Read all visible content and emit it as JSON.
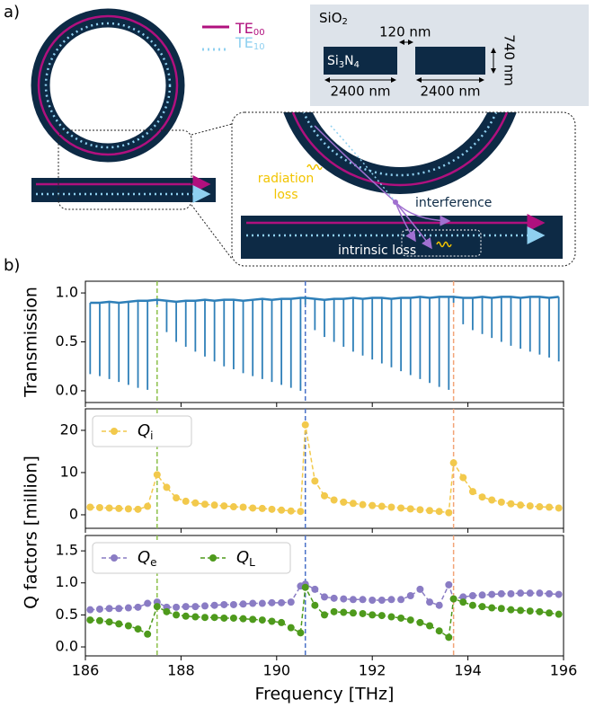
{
  "diagram": {
    "panel_label": "a)",
    "te00": {
      "text": "TE",
      "sub": "00"
    },
    "te10": {
      "text": "TE",
      "sub": "10"
    },
    "cladding": {
      "text": "SiO",
      "sub": "2"
    },
    "core": [
      "Si",
      "3",
      "N",
      "4"
    ],
    "gap": "120 nm",
    "height": "740 nm",
    "widths": [
      "2400 nm",
      "2400 nm"
    ],
    "radiation_loss": [
      "radiation",
      "loss"
    ],
    "interference": "interference",
    "intrinsic_loss": "intrinsic loss"
  },
  "panel_b_label": "b)",
  "chart_data": [
    {
      "type": "vlines",
      "ylabel": "Transmission",
      "color": "#2e7fb8",
      "x": [
        186.1,
        186.3,
        186.5,
        186.7,
        186.9,
        187.1,
        187.3,
        187.5,
        187.7,
        187.9,
        188.1,
        188.3,
        188.5,
        188.7,
        188.9,
        189.1,
        189.3,
        189.5,
        189.7,
        189.9,
        190.1,
        190.3,
        190.5,
        190.6,
        190.8,
        191.0,
        191.2,
        191.4,
        191.6,
        191.8,
        192.0,
        192.2,
        192.4,
        192.6,
        192.8,
        193.0,
        193.2,
        193.4,
        193.6,
        193.7,
        193.9,
        194.1,
        194.3,
        194.5,
        194.7,
        194.9,
        195.1,
        195.3,
        195.5,
        195.7,
        195.9
      ],
      "values": [
        0.17,
        0.15,
        0.12,
        0.09,
        0.06,
        0.03,
        0.01,
        0.88,
        0.6,
        0.5,
        0.45,
        0.4,
        0.35,
        0.3,
        0.25,
        0.22,
        0.18,
        0.15,
        0.12,
        0.09,
        0.06,
        0.03,
        0.0,
        0.88,
        0.62,
        0.55,
        0.5,
        0.45,
        0.4,
        0.36,
        0.32,
        0.28,
        0.24,
        0.2,
        0.16,
        0.12,
        0.08,
        0.04,
        0.01,
        0.9,
        0.68,
        0.62,
        0.58,
        0.54,
        0.5,
        0.46,
        0.43,
        0.4,
        0.37,
        0.34,
        0.3
      ],
      "tops": [
        0.9,
        0.9,
        0.91,
        0.9,
        0.91,
        0.92,
        0.92,
        0.93,
        0.92,
        0.91,
        0.92,
        0.92,
        0.93,
        0.92,
        0.93,
        0.93,
        0.92,
        0.93,
        0.94,
        0.93,
        0.94,
        0.94,
        0.95,
        0.95,
        0.94,
        0.93,
        0.94,
        0.94,
        0.95,
        0.94,
        0.95,
        0.95,
        0.94,
        0.95,
        0.95,
        0.96,
        0.95,
        0.96,
        0.96,
        0.96,
        0.95,
        0.95,
        0.96,
        0.95,
        0.96,
        0.96,
        0.95,
        0.96,
        0.96,
        0.95,
        0.96
      ],
      "xlim": [
        186,
        196
      ],
      "xticks": [
        186,
        188,
        190,
        192,
        194,
        196
      ],
      "ylim": [
        -0.12,
        1.12
      ],
      "yticks": [
        {
          "value": 0,
          "label": "0.0"
        },
        {
          "value": 0.5,
          "label": "0.5"
        },
        {
          "value": 1,
          "label": "1.0"
        }
      ],
      "guides": [
        {
          "x": 187.5,
          "color": "#8cc04a"
        },
        {
          "x": 190.6,
          "color": "#4a72c8"
        },
        {
          "x": 193.7,
          "color": "#f2a478"
        }
      ]
    },
    {
      "type": "line",
      "legend": "upper left",
      "legend_columns": 1,
      "x": [
        186.1,
        186.3,
        186.5,
        186.7,
        186.9,
        187.1,
        187.3,
        187.5,
        187.7,
        187.9,
        188.1,
        188.3,
        188.5,
        188.7,
        188.9,
        189.1,
        189.3,
        189.5,
        189.7,
        189.9,
        190.1,
        190.3,
        190.5,
        190.6,
        190.8,
        191.0,
        191.2,
        191.4,
        191.6,
        191.8,
        192.0,
        192.2,
        192.4,
        192.6,
        192.8,
        193.0,
        193.2,
        193.4,
        193.6,
        193.7,
        193.9,
        194.1,
        194.3,
        194.5,
        194.7,
        194.9,
        195.1,
        195.3,
        195.5,
        195.7,
        195.9
      ],
      "series": [
        {
          "name": "Q",
          "subscript": "i",
          "color": "#f2c94c",
          "values": [
            1.8,
            1.7,
            1.6,
            1.5,
            1.4,
            1.3,
            2.0,
            9.5,
            6.5,
            4.0,
            3.2,
            2.8,
            2.5,
            2.3,
            2.1,
            1.9,
            1.8,
            1.6,
            1.5,
            1.3,
            1.1,
            0.9,
            0.8,
            21.3,
            8.0,
            4.5,
            3.5,
            3.0,
            2.7,
            2.4,
            2.2,
            2.0,
            1.8,
            1.6,
            1.4,
            1.2,
            1.0,
            0.8,
            0.5,
            12.3,
            8.8,
            5.5,
            4.2,
            3.5,
            3.0,
            2.6,
            2.3,
            2.1,
            1.9,
            1.8,
            1.6
          ]
        }
      ],
      "xlim": [
        186,
        196
      ],
      "xticks": [
        186,
        188,
        190,
        192,
        194,
        196
      ],
      "ylim": [
        -3.2,
        25.1
      ],
      "yticks": [
        0,
        10,
        20
      ],
      "guides": [
        {
          "x": 187.5,
          "color": "#8cc04a"
        },
        {
          "x": 190.6,
          "color": "#4a72c8"
        },
        {
          "x": 193.7,
          "color": "#f2a478"
        }
      ]
    },
    {
      "type": "line",
      "legend": "upper left",
      "legend_columns": 2,
      "ylabel": "Q factors [million]",
      "xlabel": "Frequency [THz]",
      "x": [
        186.1,
        186.3,
        186.5,
        186.7,
        186.9,
        187.1,
        187.3,
        187.5,
        187.7,
        187.9,
        188.1,
        188.3,
        188.5,
        188.7,
        188.9,
        189.1,
        189.3,
        189.5,
        189.7,
        189.9,
        190.1,
        190.3,
        190.5,
        190.6,
        190.8,
        191.0,
        191.2,
        191.4,
        191.6,
        191.8,
        192.0,
        192.2,
        192.4,
        192.6,
        192.8,
        193.0,
        193.2,
        193.4,
        193.6,
        193.7,
        193.9,
        194.1,
        194.3,
        194.5,
        194.7,
        194.9,
        195.1,
        195.3,
        195.5,
        195.7,
        195.9
      ],
      "series": [
        {
          "name": "Q",
          "subscript": "e",
          "color": "#8a7cc4",
          "values": [
            0.58,
            0.59,
            0.6,
            0.6,
            0.61,
            0.62,
            0.68,
            0.7,
            0.62,
            0.62,
            0.63,
            0.63,
            0.64,
            0.65,
            0.66,
            0.66,
            0.67,
            0.68,
            0.68,
            0.69,
            0.69,
            0.7,
            0.95,
            0.98,
            0.9,
            0.78,
            0.76,
            0.75,
            0.74,
            0.74,
            0.73,
            0.73,
            0.74,
            0.74,
            0.8,
            0.9,
            0.7,
            0.65,
            0.97,
            0.75,
            0.78,
            0.8,
            0.81,
            0.82,
            0.83,
            0.83,
            0.84,
            0.84,
            0.84,
            0.83,
            0.82
          ]
        },
        {
          "name": "Q",
          "subscript": "L",
          "color": "#4e9a1c",
          "values": [
            0.42,
            0.41,
            0.39,
            0.36,
            0.33,
            0.28,
            0.2,
            0.63,
            0.55,
            0.5,
            0.48,
            0.47,
            0.46,
            0.46,
            0.45,
            0.45,
            0.44,
            0.43,
            0.42,
            0.4,
            0.38,
            0.3,
            0.22,
            0.93,
            0.65,
            0.5,
            0.55,
            0.54,
            0.53,
            0.52,
            0.5,
            0.49,
            0.47,
            0.45,
            0.42,
            0.38,
            0.33,
            0.25,
            0.15,
            0.75,
            0.7,
            0.65,
            0.63,
            0.61,
            0.6,
            0.58,
            0.57,
            0.56,
            0.55,
            0.53,
            0.51
          ]
        }
      ],
      "xlim": [
        186,
        196
      ],
      "xticks": [
        186,
        188,
        190,
        192,
        194,
        196
      ],
      "ylim": [
        -0.14,
        1.74
      ],
      "yticks": [
        {
          "value": 0,
          "label": "0.0"
        },
        {
          "value": 0.5,
          "label": "0.5"
        },
        {
          "value": 1,
          "label": "1.0"
        },
        {
          "value": 1.5,
          "label": "1.5"
        }
      ],
      "guides": [
        {
          "x": 187.5,
          "color": "#8cc04a"
        },
        {
          "x": 190.6,
          "color": "#4a72c8"
        },
        {
          "x": 193.7,
          "color": "#f2a478"
        }
      ]
    }
  ]
}
